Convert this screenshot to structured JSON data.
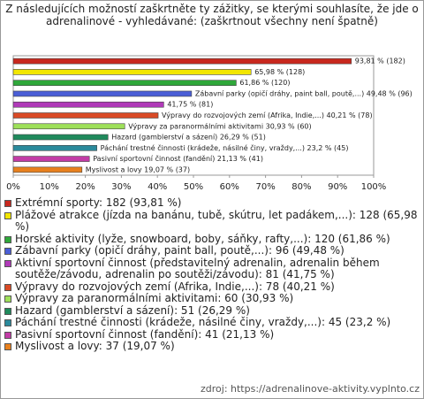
{
  "chart_data": {
    "type": "bar",
    "orientation": "horizontal",
    "title": "Z následujících možností zaškrtněte ty zážitky, se kterými souhlasíte, že jde o adrenalinové - vyhledávané: (zaškrtnout všechny není špatně)",
    "categories": [
      "Extrémní sporty: 182 (93,81 %)",
      "Plážové atrakce (jízda na banánu, tubě, skútru, let padákem,...): 128 (65,98 %)",
      "Horské aktivity (lyže, snowboard, boby, sáňky, rafty,...): 120 (61,86 %)",
      "Zábavní parky (opičí dráhy, paint ball, poutě,...): 96 (49,48 %)",
      "Aktivní sportovní činnost (představitelný adrenalin, adrenalin během soutěže/závodu, adrenalin po soutěži/závodu): 81 (41,75 %)",
      "Výpravy do rozvojových zemí (Afrika, Indie,...): 78 (40,21 %)",
      "Výpravy za paranormálními aktivitami: 60 (30,93 %)",
      "Hazard (gamblerství a sázení): 51 (26,29 %)",
      "Páchání trestné činnosti (krádeže, násilné činy, vraždy,...): 45 (23,2 %)",
      "Pasivní sportovní činnost (fandění): 41 (21,13 %)",
      "Myslivost a lovy: 37 (19,07 %)"
    ],
    "values": [
      93.81,
      65.98,
      61.86,
      49.48,
      41.75,
      40.21,
      30.93,
      26.29,
      23.2,
      21.13,
      19.07
    ],
    "value_labels": [
      "93,81 % (182)",
      "65,98 % (128)",
      "61,86 % (120)",
      "Zábavní parky (opičí dráhy, paint ball, poutě,...) 49,48 % (96)",
      "41,75 % (81)",
      "Výpravy do rozvojových zemí (Afrika, Indie,...) 40,21 % (78)",
      "Výpravy za paranormálními aktivitami 30,93 % (60)",
      "Hazard (gamblerství a sázení) 26,29 % (51)",
      "Páchání trestné činnosti (krádeže, násilné činy, vraždy,...) 23,2 % (45)",
      "Pasivní sportovní činnost (fandění) 21,13 % (41)",
      "Myslivost a lovy 19,07 % (37)"
    ],
    "colors": [
      "#c8281e",
      "#f2e600",
      "#2fa83a",
      "#4a5ed6",
      "#b03ab8",
      "#d94a26",
      "#9ee05a",
      "#1f8a5c",
      "#2a8a9c",
      "#c23ca6",
      "#e8801e"
    ],
    "xlim": [
      0,
      100
    ],
    "xticks": [
      {
        "value": 0,
        "label": "0%"
      },
      {
        "value": 10,
        "label": "10%"
      },
      {
        "value": 20,
        "label": "20%"
      },
      {
        "value": 30,
        "label": "30%"
      },
      {
        "value": 40,
        "label": "40%"
      },
      {
        "value": 50,
        "label": "50%"
      },
      {
        "value": 60,
        "label": "60%"
      },
      {
        "value": 70,
        "label": "70%"
      },
      {
        "value": 80,
        "label": "80%"
      },
      {
        "value": 90,
        "label": "90%"
      },
      {
        "value": 100,
        "label": "100%"
      }
    ],
    "grid": false,
    "source": "zdroj: https://adrenalinove-aktivity.vyplnto.cz"
  }
}
